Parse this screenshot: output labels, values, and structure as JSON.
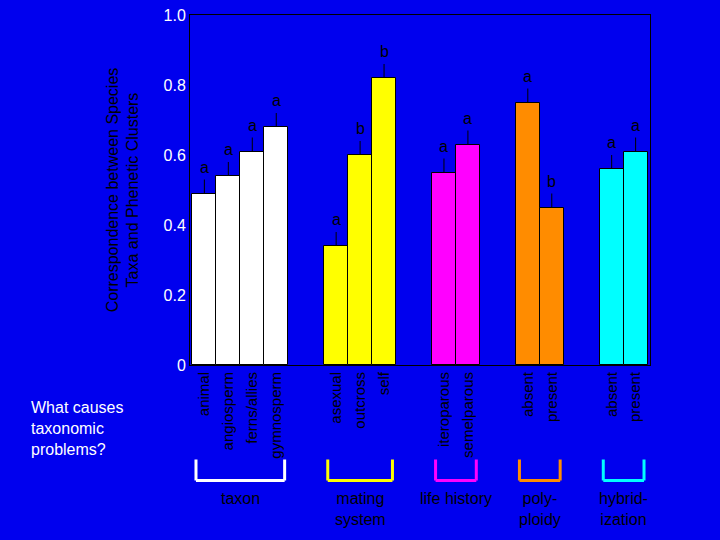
{
  "chart_data": {
    "type": "bar",
    "y_label": [
      "Correspondence between Species",
      "Taxa and Phenetic Clusters"
    ],
    "note": [
      "What causes",
      "taxonomic",
      "problems?"
    ],
    "ylim": [
      0,
      1
    ],
    "yticks": [
      0,
      0.2,
      0.4,
      0.6,
      0.8,
      {
        "value": 1,
        "label": "1.0"
      }
    ],
    "grid": false,
    "groups": [
      {
        "name": [
          "taxon"
        ],
        "color": "#ffffff",
        "categories": [
          "animal",
          "angiosperm",
          "ferns/allies",
          "gymnosperm"
        ],
        "values": [
          0.49,
          0.54,
          0.61,
          0.68
        ],
        "letters": [
          "a",
          "a",
          "a",
          "a"
        ]
      },
      {
        "name": [
          "mating",
          "system"
        ],
        "color": "#ffff00",
        "categories": [
          "asexual",
          "outcross",
          "self"
        ],
        "values": [
          0.34,
          0.6,
          0.82
        ],
        "letters": [
          "a",
          "b",
          "b"
        ]
      },
      {
        "name": [
          "life history"
        ],
        "color": "#ff00ff",
        "categories": [
          "iteroparous",
          "semelparous"
        ],
        "values": [
          0.55,
          0.63
        ],
        "letters": [
          "a",
          "a"
        ]
      },
      {
        "name": [
          "poly-",
          "ploidy"
        ],
        "color": "#ff8c00",
        "categories": [
          "absent",
          "present"
        ],
        "values": [
          0.75,
          0.45
        ],
        "letters": [
          "a",
          "b"
        ]
      },
      {
        "name": [
          "hybrid-",
          "ization"
        ],
        "color": "#00ffff",
        "categories": [
          "absent",
          "present"
        ],
        "values": [
          0.56,
          0.61
        ],
        "letters": [
          "a",
          "a"
        ]
      }
    ]
  }
}
